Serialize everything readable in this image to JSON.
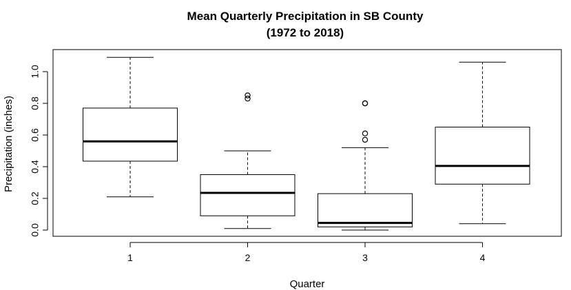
{
  "chart_data": {
    "type": "box",
    "title": "Mean Quarterly Precipitation in SB County",
    "subtitle": "(1972 to 2018)",
    "xlabel": "Quarter",
    "ylabel": "Precipitation (inches)",
    "categories": [
      "1",
      "2",
      "3",
      "4"
    ],
    "ylim": [
      0,
      1.1
    ],
    "yticks": [
      0.0,
      0.2,
      0.4,
      0.6,
      0.8,
      1.0
    ],
    "ytick_labels": [
      "0.0",
      "0.2",
      "0.4",
      "0.6",
      "0.8",
      "1.0"
    ],
    "grid": false,
    "boxes": [
      {
        "category": "1",
        "whisker_low": 0.21,
        "q1": 0.435,
        "median": 0.56,
        "q3": 0.77,
        "whisker_high": 1.09,
        "outliers": []
      },
      {
        "category": "2",
        "whisker_low": 0.01,
        "q1": 0.09,
        "median": 0.235,
        "q3": 0.35,
        "whisker_high": 0.5,
        "outliers": [
          0.83,
          0.85
        ]
      },
      {
        "category": "3",
        "whisker_low": 0.0,
        "q1": 0.02,
        "median": 0.045,
        "q3": 0.23,
        "whisker_high": 0.52,
        "outliers": [
          0.57,
          0.61,
          0.8,
          0.8
        ]
      },
      {
        "category": "4",
        "whisker_low": 0.04,
        "q1": 0.29,
        "median": 0.405,
        "q3": 0.65,
        "whisker_high": 1.06,
        "outliers": []
      }
    ]
  }
}
